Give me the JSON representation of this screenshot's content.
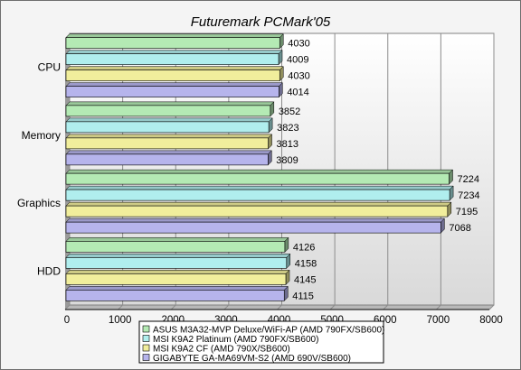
{
  "chart_data": {
    "type": "bar",
    "orientation": "horizontal",
    "title": "Futuremark PCMark'05",
    "xlabel": "",
    "ylabel": "",
    "categories": [
      "CPU",
      "Memory",
      "Graphics",
      "HDD"
    ],
    "xlim": [
      0,
      8000
    ],
    "ticks": [
      0,
      1000,
      2000,
      3000,
      4000,
      5000,
      6000,
      7000,
      8000
    ],
    "grid": true,
    "legend_position": "bottom",
    "series": [
      {
        "name": "ASUS M3A32-MVP Deluxe/WiFi-AP (AMD 790FX/SB600)",
        "color": "#b4eab4",
        "values": [
          4030,
          3852,
          7224,
          4126
        ]
      },
      {
        "name": "MSI K9A2 Platinum (AMD 790FX/SB600)",
        "color": "#b0eeee",
        "values": [
          4009,
          3823,
          7234,
          4158
        ]
      },
      {
        "name": "MSI K9A2 CF (AMD 790X/SB600)",
        "color": "#f1ee9c",
        "values": [
          4030,
          3813,
          7195,
          4145
        ]
      },
      {
        "name": "GIGABYTE GA-MA69VM-S2 (AMD 690V/SB600)",
        "color": "#b6b4ec",
        "values": [
          4014,
          3809,
          7068,
          4115
        ]
      }
    ]
  }
}
